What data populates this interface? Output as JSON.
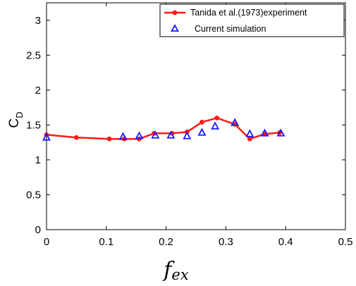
{
  "chart_data": {
    "type": "line",
    "xlim": [
      0,
      0.5
    ],
    "ylim": [
      0,
      3.25
    ],
    "x_ticks": [
      "0",
      "0.1",
      "0.2",
      "0.3",
      "0.4",
      "0.5"
    ],
    "y_ticks": [
      "0",
      "0.5",
      "1",
      "1.5",
      "2",
      "2.5",
      "3"
    ],
    "ylabel": {
      "main": "C",
      "sub": "D"
    },
    "xlabel": {
      "main": "f",
      "sub": "ex"
    },
    "legend_position": "top-right",
    "grid": false,
    "series": [
      {
        "name": "Tanida et al.(1973)experiment",
        "style": "line-dot",
        "color": "#ff1a1a",
        "points": [
          [
            0.0,
            1.36
          ],
          [
            0.05,
            1.32
          ],
          [
            0.105,
            1.3
          ],
          [
            0.13,
            1.3
          ],
          [
            0.155,
            1.3
          ],
          [
            0.18,
            1.38
          ],
          [
            0.21,
            1.38
          ],
          [
            0.235,
            1.4
          ],
          [
            0.26,
            1.54
          ],
          [
            0.285,
            1.6
          ],
          [
            0.315,
            1.51
          ],
          [
            0.34,
            1.3
          ],
          [
            0.365,
            1.37
          ],
          [
            0.39,
            1.39
          ]
        ]
      },
      {
        "name": "Current simulation",
        "style": "triangle-marker",
        "color": "#1a1aff",
        "points": [
          [
            0.0,
            1.32
          ],
          [
            0.128,
            1.33
          ],
          [
            0.155,
            1.34
          ],
          [
            0.182,
            1.35
          ],
          [
            0.208,
            1.35
          ],
          [
            0.235,
            1.34
          ],
          [
            0.26,
            1.39
          ],
          [
            0.282,
            1.48
          ],
          [
            0.315,
            1.53
          ],
          [
            0.34,
            1.37
          ],
          [
            0.365,
            1.38
          ],
          [
            0.392,
            1.38
          ]
        ]
      }
    ]
  }
}
